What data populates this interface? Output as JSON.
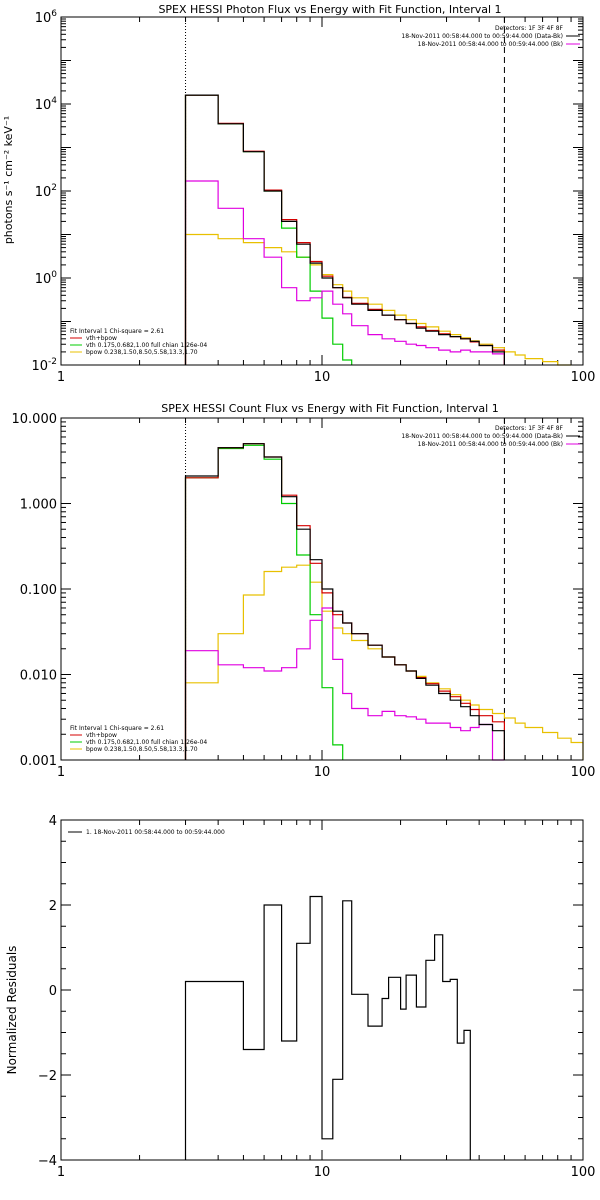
{
  "colors": {
    "data": "#000000",
    "total": "#d40000",
    "vth": "#00cc00",
    "bpow": "#e8c000",
    "bk": "#e000e0"
  },
  "charts": {
    "photon": {
      "title": "SPEX HESSI Photon Flux vs Energy with Fit Function, Interval 1",
      "ylabel": "photons s⁻¹ cm⁻² keV⁻¹",
      "ylog": true,
      "yticks": [
        {
          "v": 0.01,
          "b": "10",
          "e": "-2"
        },
        {
          "v": 1,
          "b": "10",
          "e": "0"
        },
        {
          "v": 100,
          "b": "10",
          "e": "2"
        },
        {
          "v": 10000.0,
          "b": "10",
          "e": "4"
        },
        {
          "v": 1000000.0,
          "b": "10",
          "e": "6"
        }
      ],
      "xticks": [
        "1",
        "10",
        "100"
      ],
      "detectors": "Detectors: 1F 3F 4F 8F",
      "legend_top": [
        "18-Nov-2011 00:58:44.000 to 00:59:44.000 (Data-Bk)",
        "18-Nov-2011 00:58:44.000 to 00:59:44.000 (Bk)"
      ],
      "legend_bottom": [
        "Fit Interval 1    Chi-square = 2.61",
        "vth+bpow",
        "vth 0.175,0.682,1.00  full chian 1.26e-04",
        "bpow 0.238,1.50,8.50,5.58,13.3,1.70"
      ]
    },
    "count": {
      "title": "SPEX HESSI Count Flux vs Energy with Fit Function, Interval 1",
      "ylabel": "",
      "ylog": true,
      "yticks": [
        {
          "v": 0.001,
          "t": "0.001"
        },
        {
          "v": 0.01,
          "t": "0.010"
        },
        {
          "v": 0.1,
          "t": "0.100"
        },
        {
          "v": 1,
          "t": "1.000"
        },
        {
          "v": 10,
          "t": "10.000"
        }
      ],
      "xticks": [
        "1",
        "10",
        "100"
      ],
      "detectors": "Detectors: 1F 3F 4F 8F",
      "legend_top": [
        "18-Nov-2011 00:58:44.000 to 00:59:44.000 (Data-Bk)",
        "18-Nov-2011 00:58:44.000 to 00:59:44.000 (Bk)"
      ],
      "legend_bottom": [
        "Fit Interval 1    Chi-square = 2.61",
        "vth+bpow",
        "vth 0.175,0.682,1.00  full chian 1.26e-04",
        "bpow 0.238,1.50,8.50,5.58,13.3,1.70"
      ]
    },
    "resid": {
      "title": "",
      "ylabel": "Normalized Residuals",
      "ylog": false,
      "yticks": [
        {
          "v": -4,
          "t": "−4"
        },
        {
          "v": -2,
          "t": "−2"
        },
        {
          "v": 0,
          "t": "0"
        },
        {
          "v": 2,
          "t": "2"
        },
        {
          "v": 4,
          "t": "4"
        }
      ],
      "xticks": [
        "1",
        "10",
        "100"
      ],
      "legend_top": [
        "1. 18-Nov-2011 00:58:44.000 to 00:59:44.000"
      ]
    }
  },
  "chart_data": [
    {
      "type": "line",
      "title": "SPEX HESSI Photon Flux vs Energy with Fit Function, Interval 1",
      "xlabel": "",
      "ylabel": "photons s⁻¹ cm⁻² keV⁻¹",
      "xlog": true,
      "ylog": true,
      "xlim": [
        1,
        100
      ],
      "ylim": [
        0.01,
        1000000
      ],
      "fit_range_keV": [
        3,
        50
      ],
      "bin_edges": [
        3,
        4,
        5,
        6,
        7,
        8,
        9,
        10,
        11,
        12,
        13,
        15,
        17,
        19,
        21,
        23,
        25,
        28,
        31,
        34,
        37,
        40,
        45,
        50,
        55,
        60,
        70,
        80,
        90
      ],
      "series": [
        {
          "name": "Data-Bk",
          "color": "#000000",
          "values": [
            16000,
            3500,
            800,
            100,
            20,
            6,
            2.2,
            1.0,
            0.6,
            0.35,
            0.25,
            0.18,
            0.14,
            0.11,
            0.09,
            0.07,
            0.06,
            0.05,
            0.045,
            0.04,
            0.035,
            0.028,
            0.02
          ]
        },
        {
          "name": "Bk",
          "color": "#e000e0",
          "values": [
            170,
            40,
            8,
            3,
            0.6,
            0.3,
            0.35,
            0.5,
            0.25,
            0.15,
            0.08,
            0.05,
            0.04,
            0.035,
            0.03,
            0.028,
            0.025,
            0.022,
            0.02,
            0.022,
            0.02,
            0.02,
            0.018
          ]
        },
        {
          "name": "vth+bpow",
          "color": "#d40000",
          "values": [
            16000,
            3600,
            820,
            105,
            22,
            6.5,
            2.4,
            1.1,
            0.6,
            0.36,
            0.26,
            0.19,
            0.14,
            0.11,
            0.09,
            0.075,
            0.062,
            0.052,
            0.045,
            0.04,
            0.034,
            0.028,
            0.022
          ]
        },
        {
          "name": "vth",
          "color": "#00cc00",
          "values": [
            16000,
            3500,
            800,
            100,
            14,
            3,
            0.5,
            0.12,
            0.03,
            0.013
          ]
        },
        {
          "name": "bpow",
          "color": "#e8c000",
          "values": [
            10,
            8,
            6.5,
            5,
            4,
            3,
            2,
            1.2,
            0.7,
            0.5,
            0.35,
            0.25,
            0.18,
            0.14,
            0.11,
            0.09,
            0.075,
            0.06,
            0.05,
            0.042,
            0.036,
            0.03,
            0.025,
            0.02,
            0.017,
            0.014,
            0.012,
            0.01
          ]
        }
      ]
    },
    {
      "type": "line",
      "title": "SPEX HESSI Count Flux vs Energy with Fit Function, Interval 1",
      "xlabel": "",
      "ylabel": "",
      "xlog": true,
      "ylog": true,
      "xlim": [
        1,
        100
      ],
      "ylim": [
        0.001,
        10
      ],
      "fit_range_keV": [
        3,
        50
      ],
      "bin_edges": [
        3,
        4,
        5,
        6,
        7,
        8,
        9,
        10,
        11,
        12,
        13,
        15,
        17,
        19,
        21,
        23,
        25,
        28,
        31,
        34,
        37,
        40,
        45,
        50,
        55,
        60,
        70,
        80,
        90,
        100
      ],
      "series": [
        {
          "name": "Data-Bk",
          "color": "#000000",
          "values": [
            2.1,
            4.5,
            5.0,
            3.5,
            1.2,
            0.5,
            0.22,
            0.1,
            0.055,
            0.04,
            0.03,
            0.022,
            0.016,
            0.013,
            0.011,
            0.009,
            0.0075,
            0.006,
            0.005,
            0.0042,
            0.0033,
            0.0026,
            0.0022
          ]
        },
        {
          "name": "Bk",
          "color": "#e000e0",
          "values": [
            0.019,
            0.013,
            0.012,
            0.011,
            0.012,
            0.02,
            0.043,
            0.06,
            0.015,
            0.006,
            0.004,
            0.0033,
            0.0037,
            0.0033,
            0.0032,
            0.003,
            0.0027,
            0.0027,
            0.0024,
            0.0022,
            0.0024,
            0.0026,
            0.0001
          ]
        },
        {
          "name": "vth+bpow",
          "color": "#d40000",
          "values": [
            2.0,
            4.5,
            5.0,
            3.5,
            1.25,
            0.55,
            0.2,
            0.09,
            0.05,
            0.04,
            0.03,
            0.022,
            0.016,
            0.013,
            0.011,
            0.0092,
            0.0078,
            0.0064,
            0.0055,
            0.0046,
            0.0039,
            0.0033,
            0.0028
          ]
        },
        {
          "name": "vth",
          "color": "#00cc00",
          "values": [
            2.0,
            4.4,
            4.8,
            3.3,
            1.0,
            0.25,
            0.05,
            0.007,
            0.0015
          ]
        },
        {
          "name": "bpow",
          "color": "#e8c000",
          "values": [
            0.008,
            0.03,
            0.085,
            0.16,
            0.18,
            0.19,
            0.12,
            0.055,
            0.035,
            0.03,
            0.025,
            0.02,
            0.016,
            0.013,
            0.011,
            0.0095,
            0.008,
            0.0068,
            0.0058,
            0.005,
            0.0044,
            0.0039,
            0.0035,
            0.0031,
            0.0027,
            0.0024,
            0.0021,
            0.0018,
            0.0016
          ]
        }
      ]
    },
    {
      "type": "line",
      "title": "",
      "xlabel": "",
      "ylabel": "Normalized Residuals",
      "xlog": true,
      "ylog": false,
      "xlim": [
        1,
        100
      ],
      "ylim": [
        -4,
        4
      ],
      "bin_edges": [
        3,
        5,
        6,
        7,
        8,
        9,
        10,
        11,
        12,
        13,
        15,
        17,
        18,
        20,
        21,
        23,
        25,
        27,
        29,
        31,
        33,
        35,
        37,
        40,
        45,
        50
      ],
      "series": [
        {
          "name": "1. 18-Nov-2011 00:58:44.000 to 00:59:44.000",
          "color": "#000000",
          "values": [
            0.2,
            -1.4,
            2.0,
            -1.2,
            1.1,
            2.2,
            -3.5,
            -2.1,
            2.1,
            -0.1,
            -0.85,
            -0.2,
            0.3,
            -0.45,
            0.35,
            -0.4,
            0.7,
            1.3,
            0.2,
            0.25,
            -1.25,
            -0.95
          ]
        }
      ]
    }
  ]
}
